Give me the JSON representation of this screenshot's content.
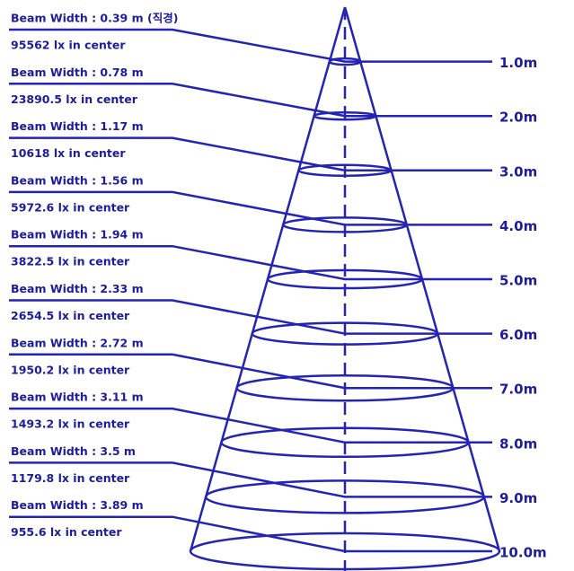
{
  "levels": [
    {
      "beam": "Beam Width : 0.39 m (직경)",
      "lux": "95562 lx in center",
      "distance": "1.0m"
    },
    {
      "beam": "Beam Width : 0.78 m",
      "lux": "23890.5 lx in center",
      "distance": "2.0m"
    },
    {
      "beam": "Beam Width : 1.17 m",
      "lux": "10618 lx in center",
      "distance": "3.0m"
    },
    {
      "beam": "Beam Width : 1.56 m",
      "lux": "5972.6 lx in center",
      "distance": "4.0m"
    },
    {
      "beam": "Beam Width : 1.94 m",
      "lux": "3822.5 lx in center",
      "distance": "5.0m"
    },
    {
      "beam": "Beam Width : 2.33 m",
      "lux": "2654.5 lx in center",
      "distance": "6.0m"
    },
    {
      "beam": "Beam Width : 2.72 m",
      "lux": "1950.2 lx in center",
      "distance": "7.0m"
    },
    {
      "beam": "Beam Width : 3.11 m",
      "lux": "1493.2 lx in center",
      "distance": "8.0m"
    },
    {
      "beam": "Beam Width : 3.5 m",
      "lux": "1179.8 lx in center",
      "distance": "9.0m"
    },
    {
      "beam": "Beam Width : 3.89 m",
      "lux": "955.6 lx in center",
      "distance": "10.0m"
    }
  ]
}
